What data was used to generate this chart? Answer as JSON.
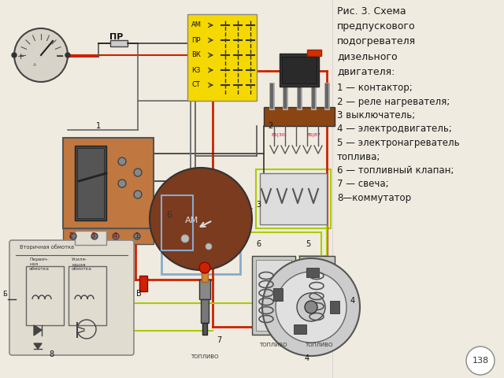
{
  "background_color": "#f0ebe0",
  "text_color": "#1a1a1a",
  "diagram_bg": "#f0ebe0",
  "yellow_box_color": "#f5d800",
  "am_box_labels": [
    "АМ",
    "ПР",
    "ВК",
    "КЗ",
    "СТ"
  ],
  "wire_red": "#cc2200",
  "wire_dark": "#222222",
  "wire_blue": "#88aacc",
  "wire_green": "#aacc00",
  "wire_brown": "#8B4513",
  "title_lines": [
    "Рис. 3. Схема",
    "предпускового",
    "подогревателя",
    "дизельного",
    "двигателя:"
  ],
  "legend_lines": [
    "1 — контактор;",
    "2 — реле нагревателя;",
    "3 выключатель;",
    "4 — электродвигатель;",
    "5 — электронагреватель",
    "топлива;",
    "6 — топливный клапан;",
    "7 — свеча;",
    "8—коммутатор"
  ],
  "page_number": "138"
}
